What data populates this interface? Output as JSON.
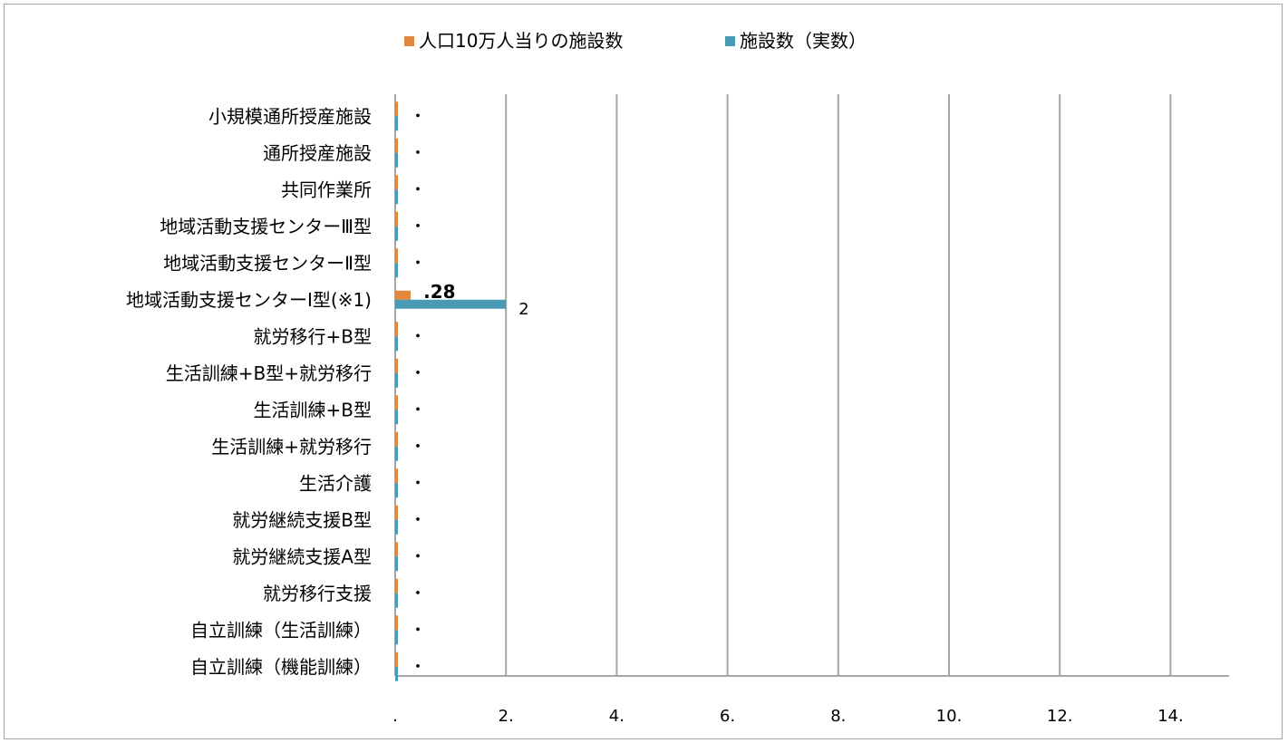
{
  "chart_data": {
    "type": "bar",
    "orientation": "horizontal",
    "categories": [
      "小規模通所授産施設",
      "通所授産施設",
      "共同作業所",
      "地域活動支援センターⅢ型",
      "地域活動支援センターⅡ型",
      "地域活動支援センターⅠ型(※1)",
      "就労移行+B型",
      "生活訓練+B型+就労移行",
      "生活訓練+B型",
      "生活訓練+就労移行",
      "生活介護",
      "就労継続支援B型",
      "就労継続支援A型",
      "就労移行支援",
      "自立訓練（生活訓練）",
      "自立訓練（機能訓練）"
    ],
    "series": [
      {
        "name": "人口10万人当りの施設数",
        "color": "#e0883e",
        "values": [
          0,
          0,
          0,
          0,
          0,
          0.28,
          0,
          0,
          0,
          0,
          0,
          0,
          0,
          0,
          0,
          0
        ],
        "labels": [
          "・",
          "・",
          "・",
          "・",
          "・",
          ".28",
          "・",
          "・",
          "・",
          "・",
          "・",
          "・",
          "・",
          "・",
          "・",
          "・"
        ]
      },
      {
        "name": "施設数（実数）",
        "color": "#4a9ab5",
        "values": [
          0,
          0,
          0,
          0,
          0,
          2,
          0,
          0,
          0,
          0,
          0,
          0,
          0,
          0,
          0,
          0
        ],
        "labels": [
          "",
          "",
          "",
          "",
          "",
          "2",
          "",
          "",
          "",
          "",
          "",
          "",
          "",
          "",
          "",
          ""
        ]
      }
    ],
    "x_ticks": [
      ".",
      "2.",
      "4.",
      "6.",
      "8.",
      "10.",
      "12.",
      "14."
    ],
    "xlim": [
      0,
      15
    ],
    "grid": true,
    "legend_position": "top",
    "title": "",
    "xlabel": "",
    "ylabel": ""
  }
}
